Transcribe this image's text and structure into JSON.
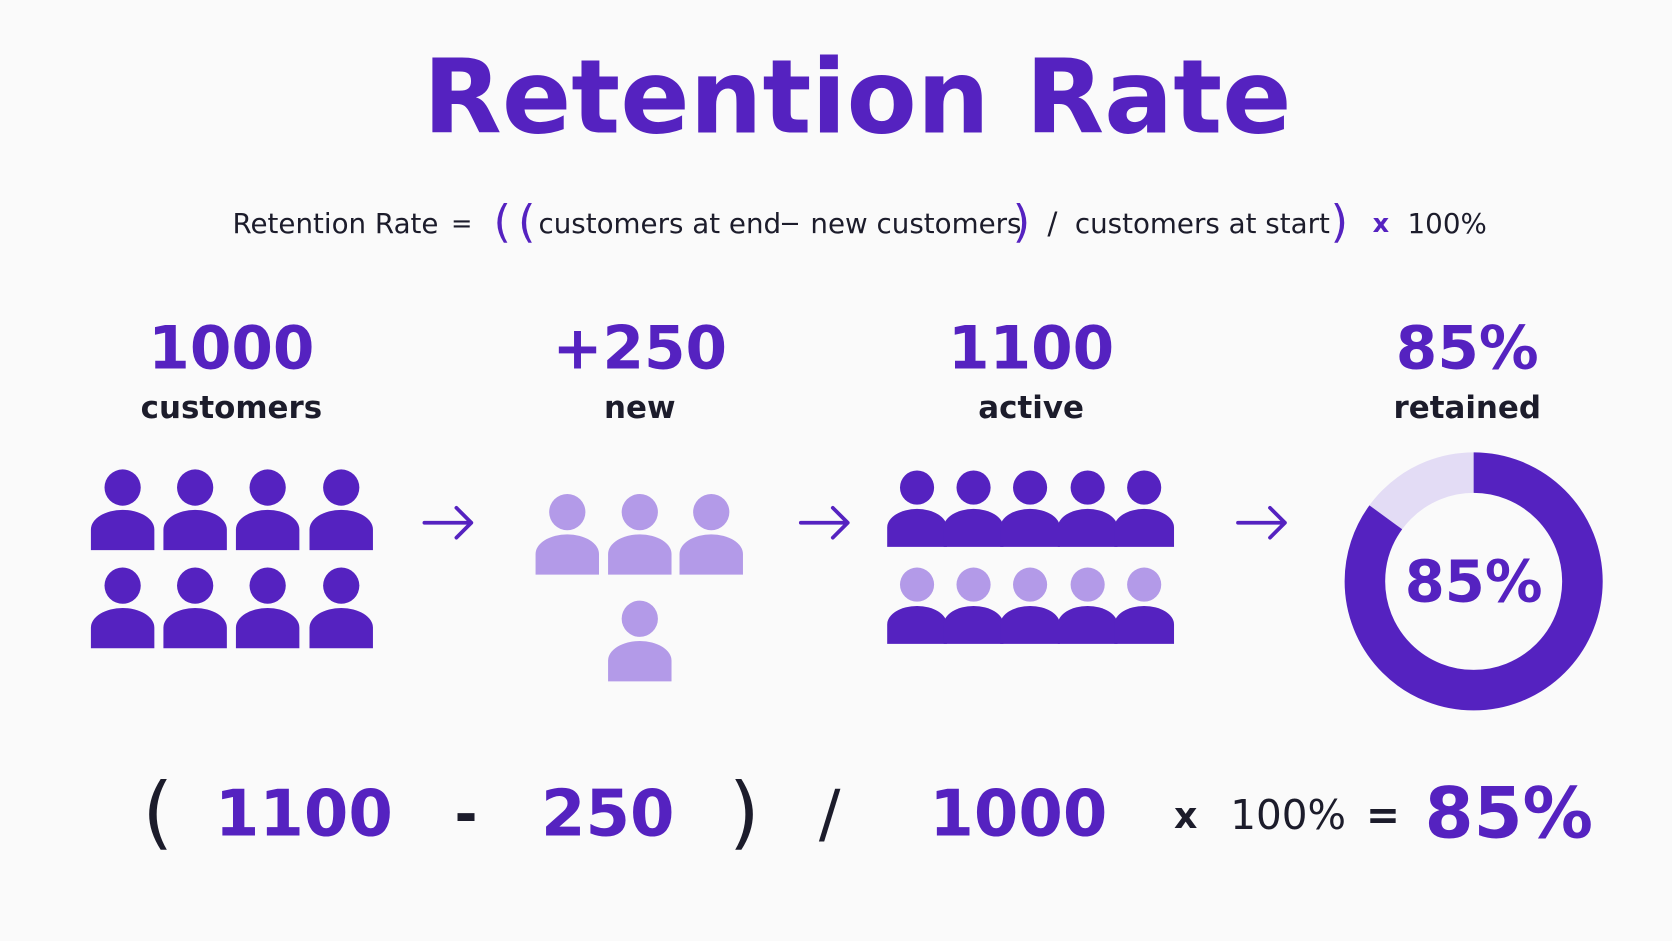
{
  "title": "Retention Rate",
  "formula": [
    "Retention Rate",
    "=",
    "(",
    "(",
    "customers at end",
    "−",
    "new customers",
    ")",
    "/",
    "customers at start",
    ")",
    "x",
    "100%"
  ],
  "stages": [
    {
      "value": "1000",
      "label": "customers"
    },
    {
      "value": "+250",
      "label": "new"
    },
    {
      "value": "1100",
      "label": "active"
    },
    {
      "value": "85%",
      "label": "retained"
    }
  ],
  "donut": {
    "value": 85,
    "label": "85%"
  },
  "equation": [
    "(",
    "1100",
    "-",
    "250",
    ")",
    "/",
    "1000",
    "x",
    "100%",
    "=",
    "85%"
  ]
}
